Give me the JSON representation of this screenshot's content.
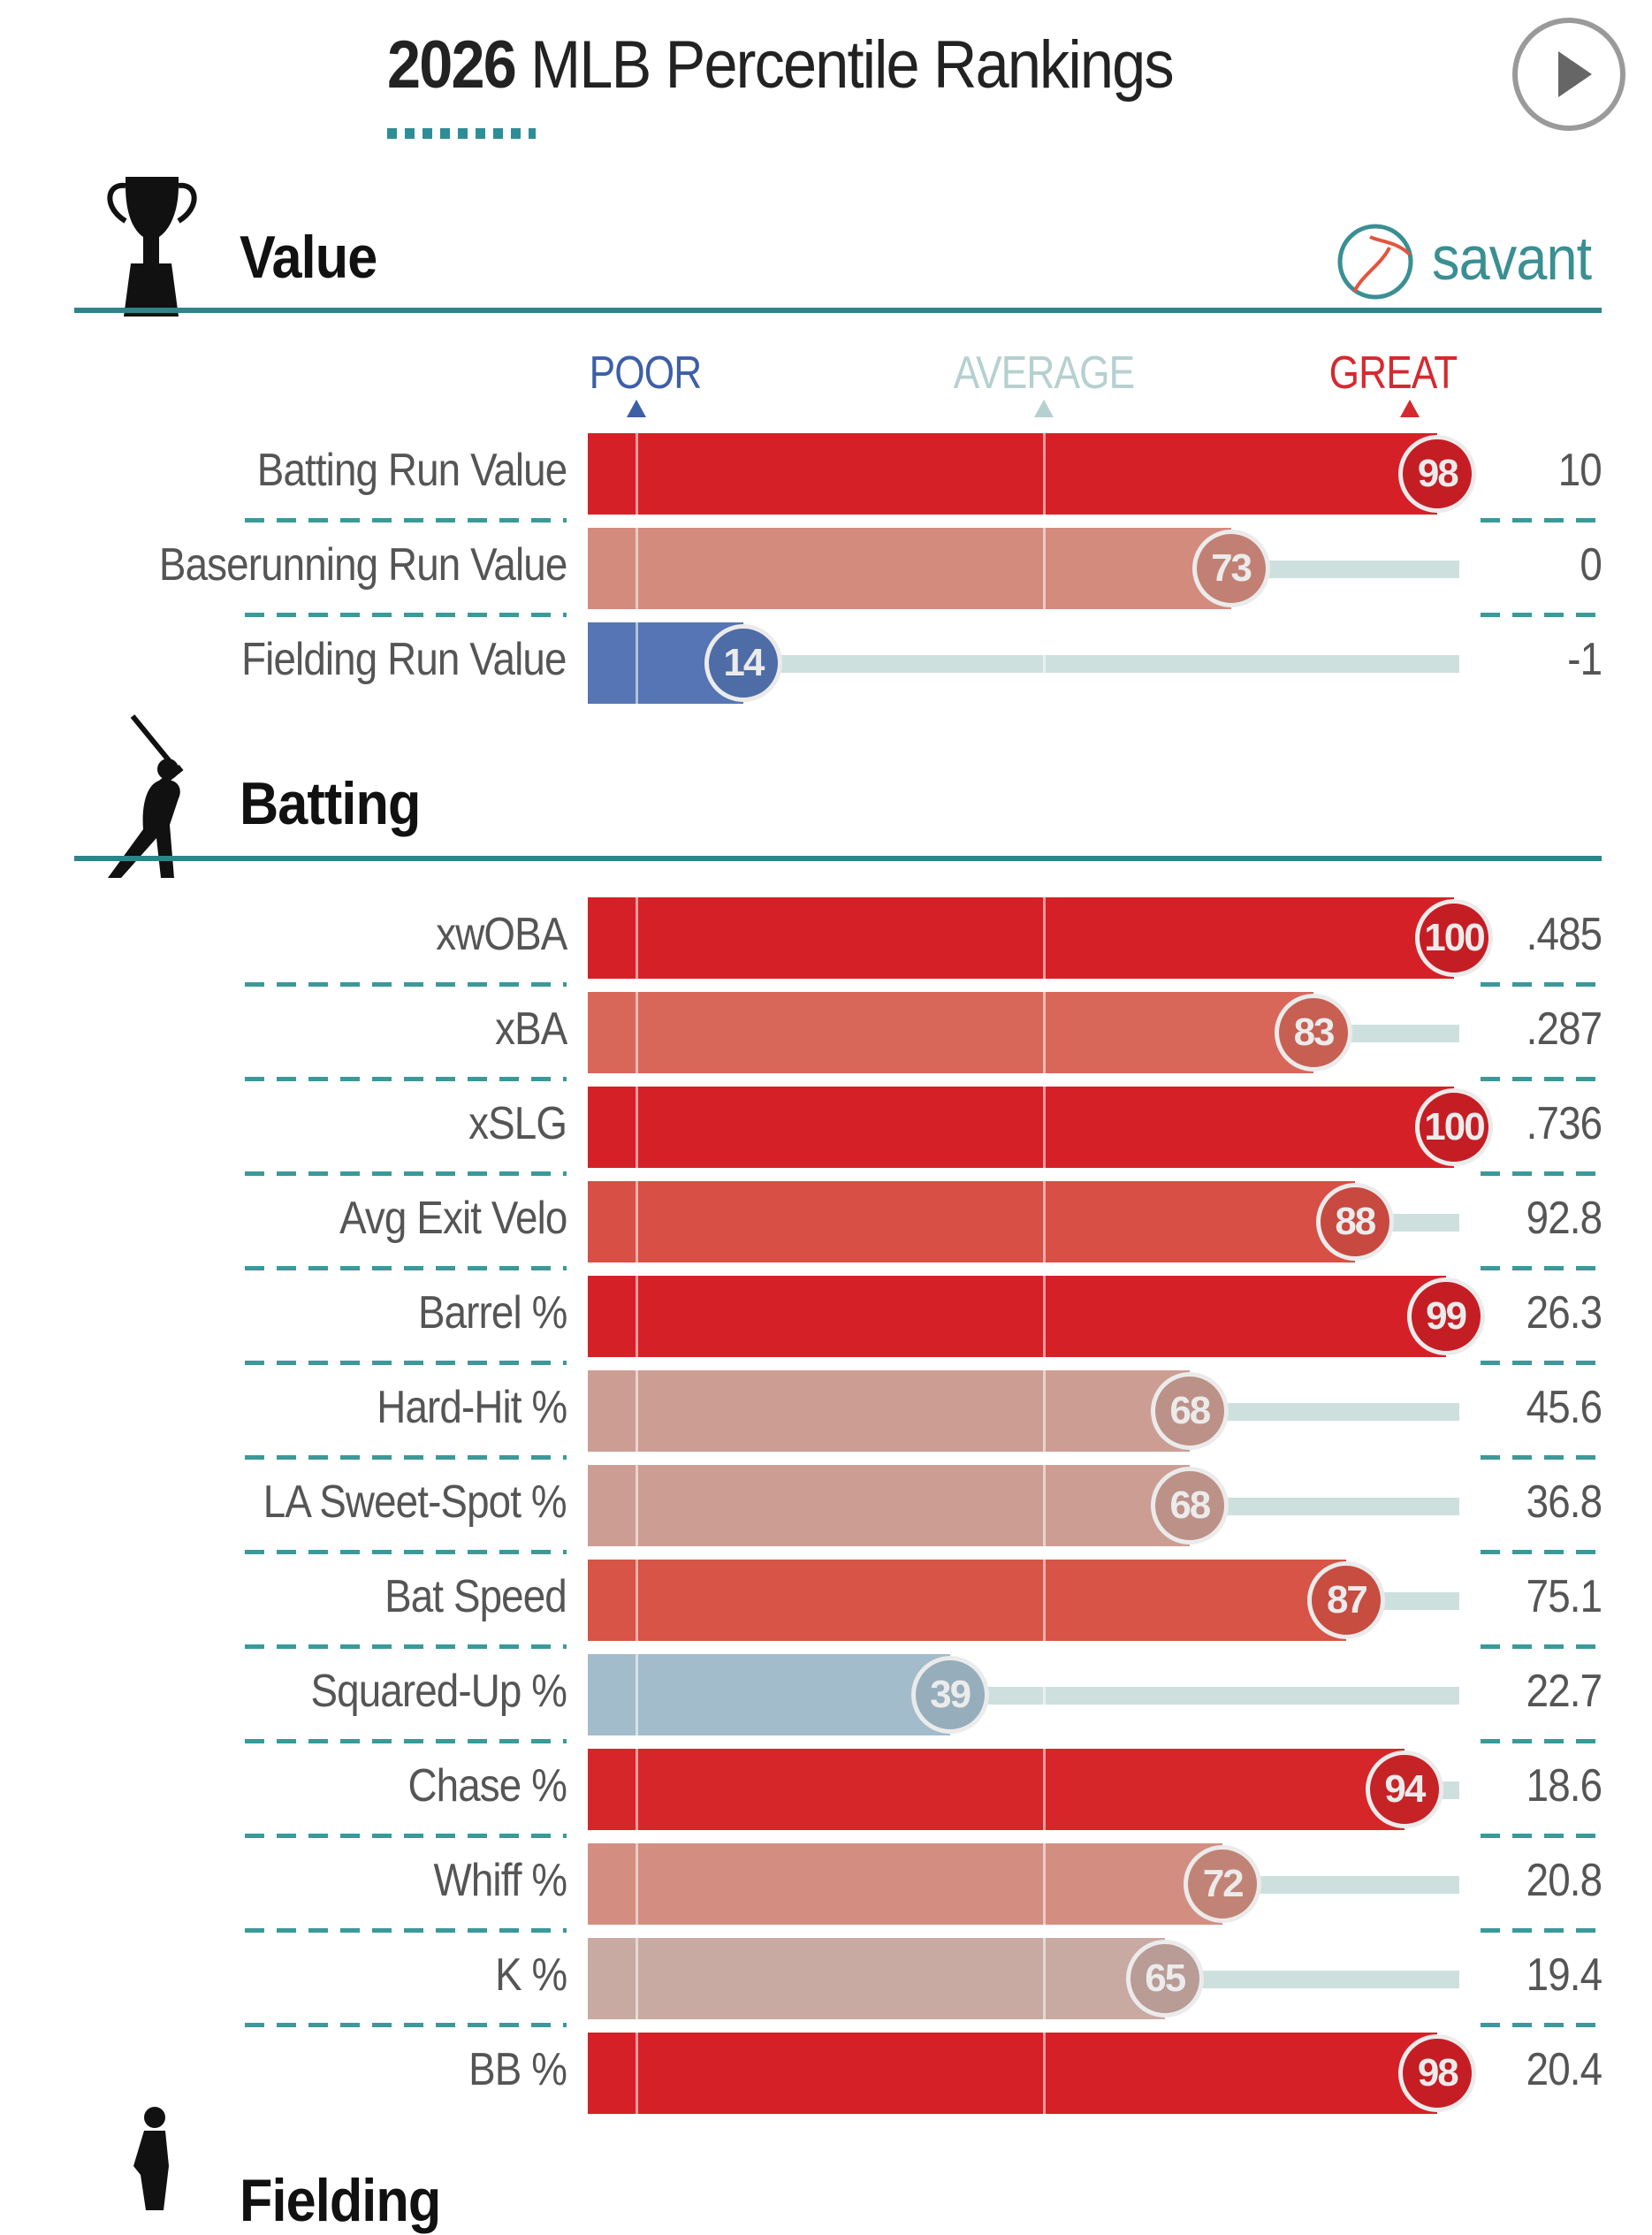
{
  "title": {
    "year": "2026",
    "rest": " MLB Percentile Rankings"
  },
  "logo_text": "savant",
  "scale_labels": {
    "poor": "POOR",
    "average": "AVERAGE",
    "great": "GREAT"
  },
  "colors": {
    "accent": "#2f8389",
    "poor": "#3d5fa8",
    "average": "#b5d0cf",
    "great": "#d42a2f",
    "track": "#cde0de"
  },
  "chart_data": {
    "type": "bar",
    "title": "2026 MLB Percentile Rankings",
    "xlim": [
      0,
      100
    ],
    "sections": [
      {
        "name": "Value",
        "icon": "trophy-icon",
        "rows": [
          {
            "label": "Batting Run Value",
            "percentile": 98,
            "value": "10",
            "color": "#d62027"
          },
          {
            "label": "Baserunning Run Value",
            "percentile": 73,
            "value": "0",
            "color": "#d38b7e"
          },
          {
            "label": "Fielding Run Value",
            "percentile": 14,
            "value": "-1",
            "color": "#5575b4"
          }
        ]
      },
      {
        "name": "Batting",
        "icon": "batter-icon",
        "rows": [
          {
            "label": "xwOBA",
            "percentile": 100,
            "value": ".485",
            "color": "#d62027"
          },
          {
            "label": "xBA",
            "percentile": 83,
            "value": ".287",
            "color": "#d8675a"
          },
          {
            "label": "xSLG",
            "percentile": 100,
            "value": ".736",
            "color": "#d62027"
          },
          {
            "label": "Avg Exit Velo",
            "percentile": 88,
            "value": "92.8",
            "color": "#d84f45"
          },
          {
            "label": "Barrel %",
            "percentile": 99,
            "value": "26.3",
            "color": "#d62027"
          },
          {
            "label": "Hard-Hit %",
            "percentile": 68,
            "value": "45.6",
            "color": "#cc9e93"
          },
          {
            "label": "LA Sweet-Spot %",
            "percentile": 68,
            "value": "36.8",
            "color": "#cc9e93"
          },
          {
            "label": "Bat Speed",
            "percentile": 87,
            "value": "75.1",
            "color": "#d75446"
          },
          {
            "label": "Squared-Up %",
            "percentile": 39,
            "value": "22.7",
            "color": "#a3bccb"
          },
          {
            "label": "Chase %",
            "percentile": 94,
            "value": "18.6",
            "color": "#d7262a"
          },
          {
            "label": "Whiff %",
            "percentile": 72,
            "value": "20.8",
            "color": "#d38e81"
          },
          {
            "label": "K %",
            "percentile": 65,
            "value": "19.4",
            "color": "#c8aaa2"
          },
          {
            "label": "BB %",
            "percentile": 98,
            "value": "20.4",
            "color": "#d62027"
          }
        ]
      },
      {
        "name": "Fielding",
        "icon": "fielder-icon",
        "rows": []
      }
    ]
  }
}
